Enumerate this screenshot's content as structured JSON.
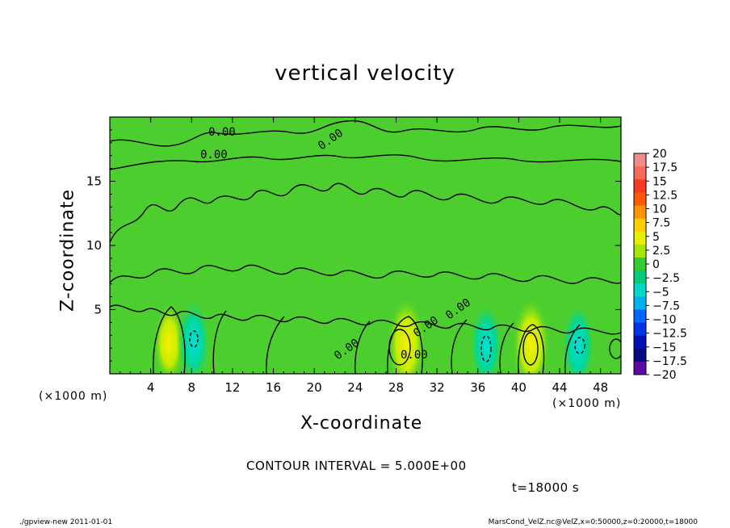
{
  "chart_data": {
    "type": "heatmap",
    "title": "vertical velocity",
    "xlabel": "X-coordinate",
    "ylabel": "Z-coordinate",
    "x_unit": "(×1000 m)",
    "y_unit": "(×1000 m)",
    "xlim": [
      0,
      50
    ],
    "ylim": [
      0,
      20
    ],
    "x_ticks": [
      4,
      8,
      12,
      16,
      20,
      24,
      28,
      32,
      36,
      40,
      44,
      48
    ],
    "y_ticks": [
      5,
      10,
      15
    ],
    "colorbar": {
      "labels": [
        "20",
        "17.5",
        "15",
        "12.5",
        "10",
        "7.5",
        "5",
        "2.5",
        "0",
        "−2.5",
        "−5",
        "−7.5",
        "−10",
        "−12.5",
        "−15",
        "−17.5",
        "−20"
      ],
      "colors": [
        "#f28c8c",
        "#f56a5a",
        "#f83a24",
        "#ff5a00",
        "#ff9400",
        "#ffcc00",
        "#e6f000",
        "#a6e600",
        "#33cc33",
        "#00cc7a",
        "#00d9c8",
        "#00b2f0",
        "#0066ff",
        "#0033e6",
        "#0010b3",
        "#0a0a80",
        "#5a0aa0"
      ]
    },
    "features": [
      {
        "kind": "updraft",
        "x": 5.8,
        "z": 2.4,
        "value": 4
      },
      {
        "kind": "updraft",
        "x": 29.0,
        "z": 2.3,
        "value": 6
      },
      {
        "kind": "updraft",
        "x": 41.2,
        "z": 2.3,
        "value": 6
      },
      {
        "kind": "downdraft",
        "x": 8.2,
        "z": 2.5,
        "value": -5
      },
      {
        "kind": "downdraft",
        "x": 36.8,
        "z": 2.2,
        "value": -5
      },
      {
        "kind": "downdraft",
        "x": 45.8,
        "z": 2.2,
        "value": -5
      }
    ],
    "contour_labels": [
      "0.00",
      "0.00",
      "0.00",
      "0.00",
      "0.00",
      "0.00",
      "0.00"
    ]
  },
  "contour_interval": "CONTOUR INTERVAL = 5.000E+00",
  "time_label": "t=18000 s",
  "footer_left": "./gpview-new  2011-01-01",
  "footer_right": "MarsCond_VelZ.nc@VelZ,x=0:50000,z=0:20000,t=18000"
}
